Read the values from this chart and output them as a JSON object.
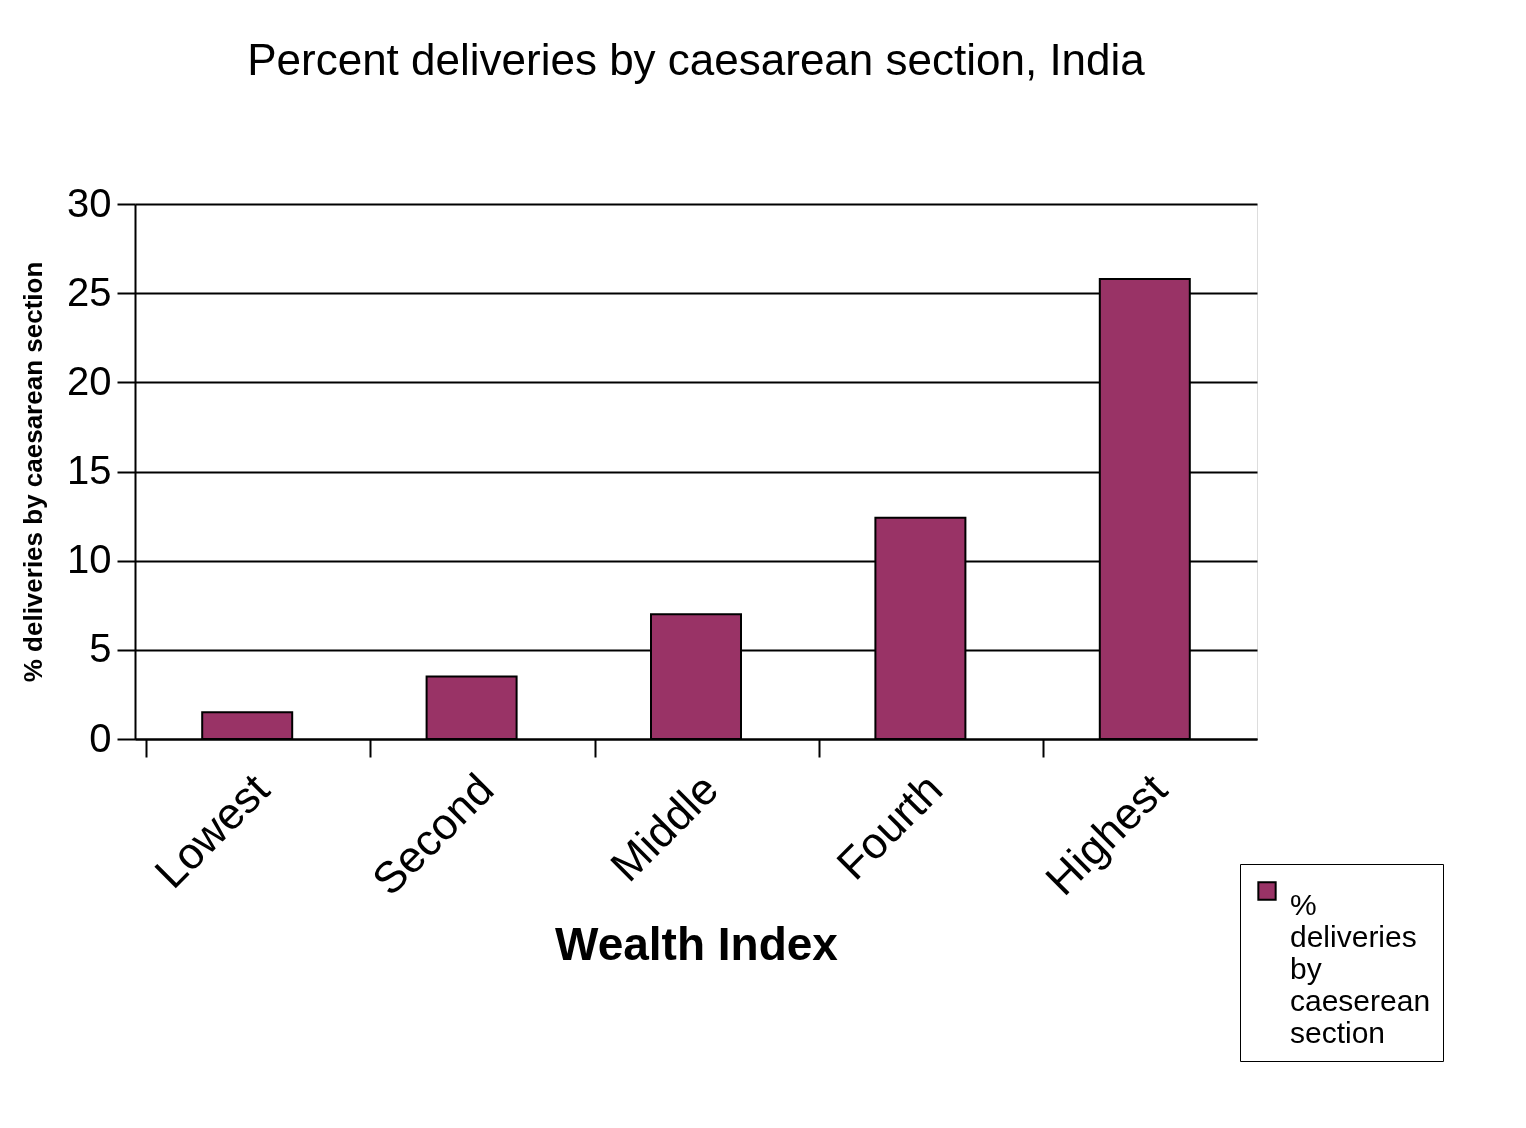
{
  "chart_data": {
    "type": "bar",
    "title": "Percent deliveries by caesarean section, India",
    "xlabel": "Wealth Index",
    "ylabel": "% deliveries by caesarean section",
    "categories": [
      "Lowest",
      "Second",
      "Middle",
      "Fourth",
      "Highest"
    ],
    "series": [
      {
        "name": "% deliveries by caeserean section",
        "color": "#993366",
        "values": [
          1.5,
          3.5,
          7.0,
          12.4,
          25.8
        ]
      }
    ],
    "ylim": [
      0,
      30
    ],
    "yticks": [
      0,
      5,
      10,
      15,
      20,
      25,
      30
    ],
    "grid": "y",
    "legend": "bottom right"
  }
}
